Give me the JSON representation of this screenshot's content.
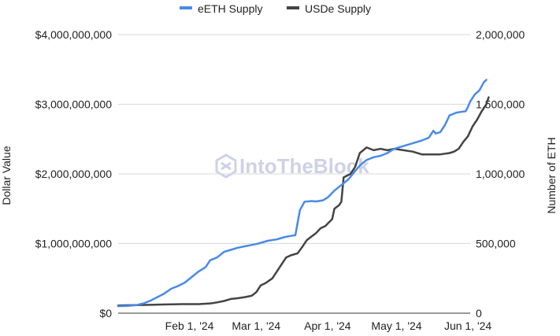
{
  "chart_data": {
    "type": "line",
    "title": "",
    "legend": {
      "placement": "top",
      "items": [
        "eETH Supply",
        "USDe Supply"
      ]
    },
    "left_axis": {
      "label": "Dollar Value",
      "range": [
        0,
        4000000000
      ],
      "tick_labels": [
        "$0",
        "$1,000,000,000",
        "$2,000,000,000",
        "$3,000,000,000",
        "$4,000,000,000"
      ],
      "tick_values": [
        0,
        1000000000,
        2000000000,
        3000000000,
        4000000000
      ]
    },
    "right_axis": {
      "label": "Number of ETH",
      "range": [
        0,
        2000000
      ],
      "tick_labels": [
        "0",
        "500,000",
        "1,000,000",
        "1,500,000",
        "2,000,000"
      ],
      "tick_values": [
        0,
        500000,
        1000000,
        1500000,
        2000000
      ]
    },
    "x_axis": {
      "range": [
        "2024-01-01",
        "2024-06-02"
      ],
      "tick_labels": [
        "Feb 1,  '24",
        "Mar 1,  '24",
        "Apr 1,  '24",
        "May 1,  '24",
        "Jun 1,  '24"
      ],
      "tick_dates": [
        "2024-02-01",
        "2024-03-01",
        "2024-04-01",
        "2024-05-01",
        "2024-06-01"
      ]
    },
    "grid": true,
    "watermark": "IntoTheBlock",
    "series": [
      {
        "name": "eETH Supply",
        "axis": "right",
        "color": "#4a8ae8",
        "points": [
          [
            "2024-01-01",
            50000
          ],
          [
            "2024-01-05",
            52000
          ],
          [
            "2024-01-09",
            58000
          ],
          [
            "2024-01-12",
            70000
          ],
          [
            "2024-01-15",
            90000
          ],
          [
            "2024-01-18",
            115000
          ],
          [
            "2024-01-21",
            140000
          ],
          [
            "2024-01-24",
            175000
          ],
          [
            "2024-01-27",
            195000
          ],
          [
            "2024-01-30",
            220000
          ],
          [
            "2024-02-02",
            260000
          ],
          [
            "2024-02-05",
            300000
          ],
          [
            "2024-02-08",
            330000
          ],
          [
            "2024-02-10",
            380000
          ],
          [
            "2024-02-13",
            400000
          ],
          [
            "2024-02-16",
            440000
          ],
          [
            "2024-02-19",
            455000
          ],
          [
            "2024-02-22",
            470000
          ],
          [
            "2024-02-25",
            480000
          ],
          [
            "2024-02-28",
            490000
          ],
          [
            "2024-03-02",
            500000
          ],
          [
            "2024-03-06",
            520000
          ],
          [
            "2024-03-10",
            530000
          ],
          [
            "2024-03-13",
            545000
          ],
          [
            "2024-03-16",
            555000
          ],
          [
            "2024-03-18",
            560000
          ],
          [
            "2024-03-20",
            740000
          ],
          [
            "2024-03-22",
            800000
          ],
          [
            "2024-03-25",
            805000
          ],
          [
            "2024-03-27",
            802000
          ],
          [
            "2024-03-30",
            810000
          ],
          [
            "2024-04-01",
            830000
          ],
          [
            "2024-04-04",
            880000
          ],
          [
            "2024-04-07",
            920000
          ],
          [
            "2024-04-10",
            960000
          ],
          [
            "2024-04-12",
            1000000
          ],
          [
            "2024-04-15",
            1060000
          ],
          [
            "2024-04-18",
            1100000
          ],
          [
            "2024-04-21",
            1120000
          ],
          [
            "2024-04-24",
            1130000
          ],
          [
            "2024-04-27",
            1150000
          ],
          [
            "2024-04-30",
            1180000
          ],
          [
            "2024-05-04",
            1200000
          ],
          [
            "2024-05-08",
            1220000
          ],
          [
            "2024-05-12",
            1240000
          ],
          [
            "2024-05-15",
            1260000
          ],
          [
            "2024-05-17",
            1310000
          ],
          [
            "2024-05-18",
            1290000
          ],
          [
            "2024-05-20",
            1300000
          ],
          [
            "2024-05-22",
            1350000
          ],
          [
            "2024-05-24",
            1420000
          ],
          [
            "2024-05-27",
            1440000
          ],
          [
            "2024-05-29",
            1445000
          ],
          [
            "2024-05-31",
            1450000
          ],
          [
            "2024-06-01",
            1480000
          ],
          [
            "2024-06-02",
            1520000
          ],
          [
            "2024-06-04",
            1570000
          ],
          [
            "2024-06-06",
            1600000
          ],
          [
            "2024-06-08",
            1660000
          ],
          [
            "2024-06-09",
            1675000
          ]
        ]
      },
      {
        "name": "USDe Supply",
        "axis": "left",
        "color": "#444444",
        "points": [
          [
            "2024-01-01",
            110000000
          ],
          [
            "2024-01-08",
            115000000
          ],
          [
            "2024-01-15",
            120000000
          ],
          [
            "2024-01-22",
            125000000
          ],
          [
            "2024-01-29",
            130000000
          ],
          [
            "2024-02-05",
            130000000
          ],
          [
            "2024-02-10",
            140000000
          ],
          [
            "2024-02-13",
            155000000
          ],
          [
            "2024-02-16",
            175000000
          ],
          [
            "2024-02-19",
            205000000
          ],
          [
            "2024-02-22",
            215000000
          ],
          [
            "2024-02-25",
            230000000
          ],
          [
            "2024-02-28",
            250000000
          ],
          [
            "2024-03-01",
            300000000
          ],
          [
            "2024-03-03",
            400000000
          ],
          [
            "2024-03-05",
            430000000
          ],
          [
            "2024-03-08",
            500000000
          ],
          [
            "2024-03-10",
            600000000
          ],
          [
            "2024-03-12",
            700000000
          ],
          [
            "2024-03-14",
            800000000
          ],
          [
            "2024-03-16",
            830000000
          ],
          [
            "2024-03-19",
            860000000
          ],
          [
            "2024-03-21",
            950000000
          ],
          [
            "2024-03-23",
            1050000000
          ],
          [
            "2024-03-25",
            1100000000
          ],
          [
            "2024-03-27",
            1150000000
          ],
          [
            "2024-03-29",
            1220000000
          ],
          [
            "2024-03-31",
            1250000000
          ],
          [
            "2024-04-03",
            1350000000
          ],
          [
            "2024-04-04",
            1500000000
          ],
          [
            "2024-04-06",
            1550000000
          ],
          [
            "2024-04-07",
            1600000000
          ],
          [
            "2024-04-08",
            1950000000
          ],
          [
            "2024-04-11",
            2000000000
          ],
          [
            "2024-04-13",
            2100000000
          ],
          [
            "2024-04-15",
            2300000000
          ],
          [
            "2024-04-18",
            2380000000
          ],
          [
            "2024-04-21",
            2340000000
          ],
          [
            "2024-04-24",
            2360000000
          ],
          [
            "2024-04-27",
            2340000000
          ],
          [
            "2024-04-30",
            2360000000
          ],
          [
            "2024-05-04",
            2340000000
          ],
          [
            "2024-05-08",
            2320000000
          ],
          [
            "2024-05-12",
            2280000000
          ],
          [
            "2024-05-16",
            2280000000
          ],
          [
            "2024-05-20",
            2280000000
          ],
          [
            "2024-05-24",
            2300000000
          ],
          [
            "2024-05-26",
            2320000000
          ],
          [
            "2024-05-28",
            2360000000
          ],
          [
            "2024-05-30",
            2460000000
          ],
          [
            "2024-06-01",
            2540000000
          ],
          [
            "2024-06-03",
            2680000000
          ],
          [
            "2024-06-05",
            2780000000
          ],
          [
            "2024-06-07",
            2900000000
          ],
          [
            "2024-06-09",
            3000000000
          ],
          [
            "2024-06-10",
            3100000000
          ]
        ]
      }
    ]
  }
}
